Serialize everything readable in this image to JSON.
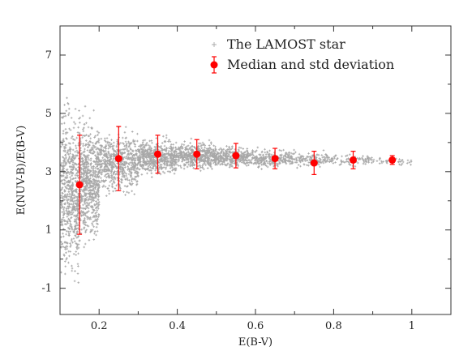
{
  "chart_data": {
    "type": "scatter",
    "xlabel": "E(B-V)",
    "ylabel": "E(NUV-B)/E(B-V)",
    "xlim": [
      0.1,
      1.1
    ],
    "ylim": [
      -1.9,
      8.0
    ],
    "x_ticks": [
      0.2,
      0.4,
      0.6,
      0.8,
      1.0
    ],
    "x_tick_labels": [
      "0.2",
      "0.4",
      "0.6",
      "0.8",
      "1"
    ],
    "y_ticks": [
      -1,
      1,
      3,
      5,
      7
    ],
    "y_tick_labels": [
      "-1",
      "1",
      "3",
      "5",
      "7"
    ],
    "grid": false,
    "legend_position": "top-right",
    "series": [
      {
        "name": "The LAMOST star",
        "kind": "scatter",
        "marker": "plus",
        "color": "#a8a8a8",
        "density_profile": [
          {
            "x_min": 0.1,
            "x_max": 0.15,
            "y_center": 2.3,
            "y_spread": 2.8,
            "relative_density": 1.0
          },
          {
            "x_min": 0.15,
            "x_max": 0.2,
            "y_center": 2.7,
            "y_spread": 2.0,
            "relative_density": 1.0
          },
          {
            "x_min": 0.2,
            "x_max": 0.3,
            "y_center": 3.3,
            "y_spread": 1.0,
            "relative_density": 0.95
          },
          {
            "x_min": 0.3,
            "x_max": 0.4,
            "y_center": 3.5,
            "y_spread": 0.6,
            "relative_density": 0.85
          },
          {
            "x_min": 0.4,
            "x_max": 0.5,
            "y_center": 3.55,
            "y_spread": 0.45,
            "relative_density": 0.7
          },
          {
            "x_min": 0.5,
            "x_max": 0.6,
            "y_center": 3.5,
            "y_spread": 0.35,
            "relative_density": 0.5
          },
          {
            "x_min": 0.6,
            "x_max": 0.7,
            "y_center": 3.45,
            "y_spread": 0.3,
            "relative_density": 0.35
          },
          {
            "x_min": 0.7,
            "x_max": 0.8,
            "y_center": 3.4,
            "y_spread": 0.25,
            "relative_density": 0.22
          },
          {
            "x_min": 0.8,
            "x_max": 0.9,
            "y_center": 3.4,
            "y_spread": 0.2,
            "relative_density": 0.12
          },
          {
            "x_min": 0.9,
            "x_max": 1.0,
            "y_center": 3.35,
            "y_spread": 0.15,
            "relative_density": 0.06
          }
        ]
      },
      {
        "name": "Median and std deviation",
        "kind": "errorbar",
        "color": "#ff0000",
        "x": [
          0.15,
          0.25,
          0.35,
          0.45,
          0.55,
          0.65,
          0.75,
          0.85,
          0.95
        ],
        "y": [
          2.55,
          3.45,
          3.6,
          3.6,
          3.55,
          3.45,
          3.3,
          3.4,
          3.4
        ],
        "err": [
          1.7,
          1.1,
          0.65,
          0.5,
          0.42,
          0.35,
          0.4,
          0.3,
          0.15
        ]
      }
    ]
  }
}
